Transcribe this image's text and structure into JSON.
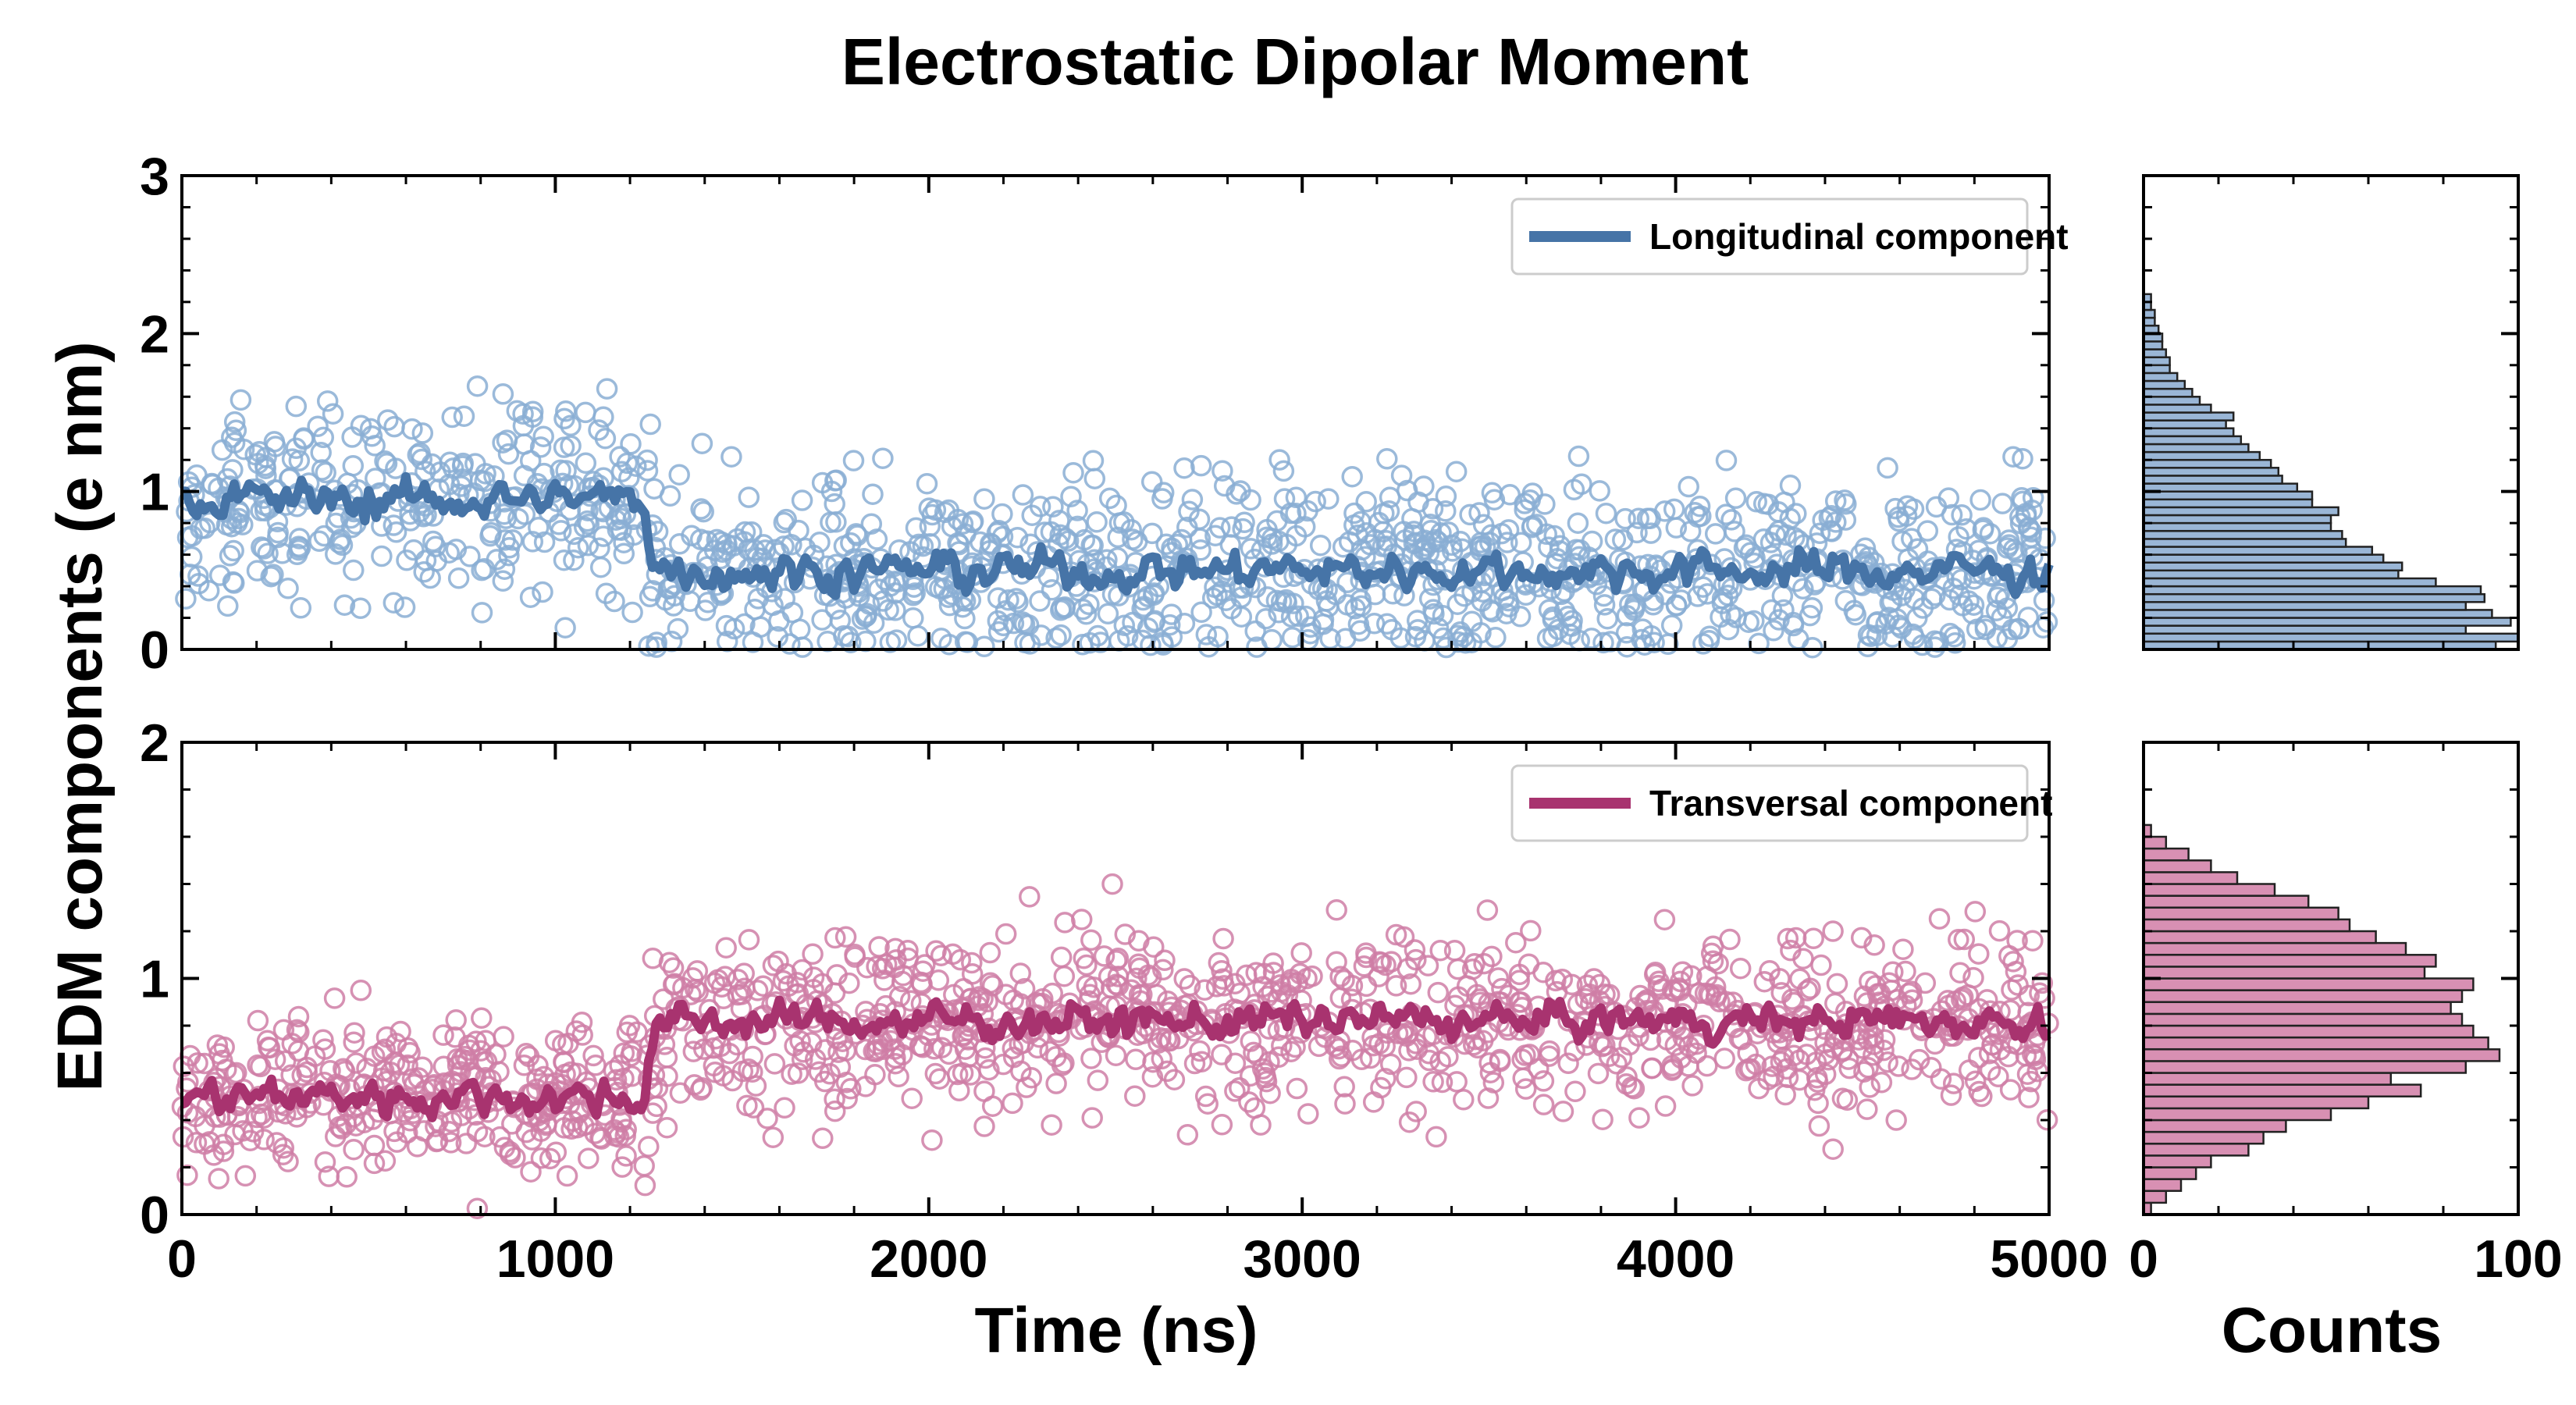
{
  "chart_data": {
    "type": "scatter",
    "title": "Electrostatic Dipolar Moment",
    "ylabel": "EDM components (e nm)",
    "xlabel": "Time (ns)",
    "hist_xlabel": "Counts",
    "x_ticks": [
      "0",
      "1000",
      "2000",
      "3000",
      "4000",
      "5000"
    ],
    "hist_ticks": [
      "0",
      "100"
    ],
    "xlim": [
      0,
      5000
    ],
    "hist_xlim": [
      0,
      100
    ],
    "panels": [
      {
        "name": "longitudinal",
        "legend": "Longitudinal component",
        "color": "#4674a7",
        "scatter_color": "#8aaed3",
        "hist_color": "#9ab6d6",
        "ylim": [
          0,
          3
        ],
        "y_ticks": [
          "0",
          "1",
          "2",
          "3"
        ],
        "series": [
          {
            "name": "Longitudinal component (moving average)",
            "x": [
              0,
              1250,
              1260,
              5000
            ],
            "values": [
              0.95,
              1.0,
              0.55,
              0.55
            ]
          },
          {
            "name": "Longitudinal component (raw samples)",
            "y_range": [
              0,
              2.25
            ]
          }
        ],
        "histogram": {
          "bins": [
            0.025,
            0.075,
            0.125,
            0.175,
            0.225,
            0.275,
            0.325,
            0.375,
            0.425,
            0.475,
            0.525,
            0.575,
            0.625,
            0.675,
            0.725,
            0.775,
            0.825,
            0.875,
            0.925,
            0.975,
            1.025,
            1.075,
            1.125,
            1.175,
            1.225,
            1.275,
            1.325,
            1.375,
            1.425,
            1.475,
            1.525,
            1.575,
            1.625,
            1.675,
            1.725,
            1.775,
            1.825,
            1.875,
            1.925,
            1.975,
            2.025,
            2.075,
            2.125,
            2.175,
            2.225
          ],
          "counts": [
            94,
            100,
            86,
            98,
            93,
            86,
            91,
            90,
            78,
            68,
            69,
            64,
            61,
            54,
            53,
            50,
            50,
            52,
            45,
            45,
            41,
            37,
            36,
            34,
            31,
            28,
            26,
            24,
            22,
            24,
            18,
            15,
            13,
            11,
            9,
            7,
            7,
            6,
            5,
            5,
            4,
            3,
            3,
            2,
            2
          ]
        }
      },
      {
        "name": "transversal",
        "legend": "Transversal component",
        "color": "#a8336f",
        "scatter_color": "#cf7ea6",
        "hist_color": "#d890b3",
        "ylim": [
          0,
          2
        ],
        "y_ticks": [
          "0",
          "1",
          "2"
        ],
        "series": [
          {
            "name": "Transversal component (moving average)",
            "x": [
              0,
              1250,
              1300,
              5000
            ],
            "values": [
              0.5,
              0.55,
              0.8,
              0.85
            ]
          },
          {
            "name": "Transversal component (raw samples)",
            "y_range": [
              0,
              1.6
            ]
          }
        ],
        "histogram": {
          "bins": [
            0.025,
            0.075,
            0.125,
            0.175,
            0.225,
            0.275,
            0.325,
            0.375,
            0.425,
            0.475,
            0.525,
            0.575,
            0.625,
            0.675,
            0.725,
            0.775,
            0.825,
            0.875,
            0.925,
            0.975,
            1.025,
            1.075,
            1.125,
            1.175,
            1.225,
            1.275,
            1.325,
            1.375,
            1.425,
            1.475,
            1.525,
            1.575,
            1.625
          ],
          "counts": [
            2,
            6,
            10,
            14,
            18,
            28,
            32,
            38,
            50,
            60,
            74,
            66,
            86,
            95,
            92,
            88,
            85,
            82,
            85,
            88,
            75,
            78,
            70,
            62,
            55,
            52,
            44,
            35,
            25,
            18,
            12,
            6,
            2
          ]
        }
      }
    ]
  }
}
